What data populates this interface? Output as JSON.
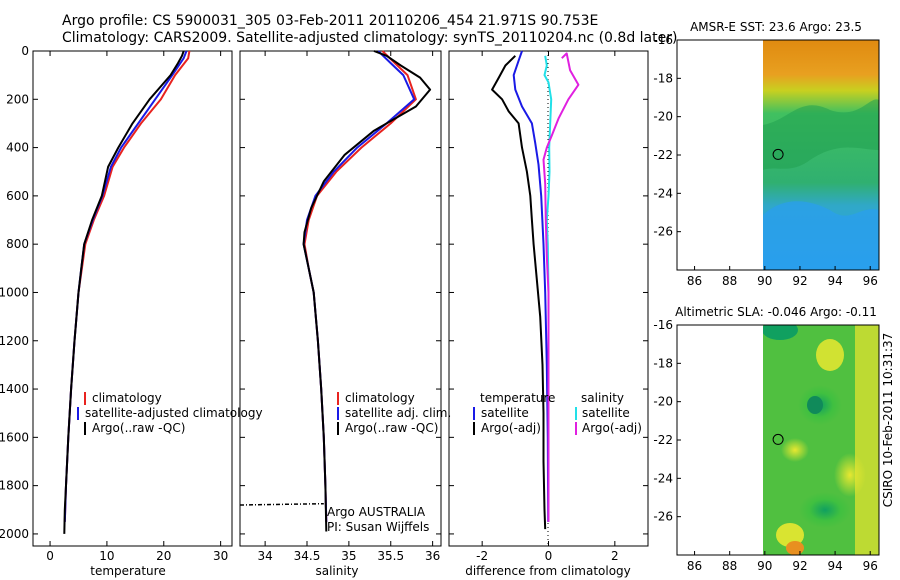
{
  "header": {
    "line1": "Argo profile: CS 5900031_305 03-Feb-2011 20110206_454 21.971S 90.753E",
    "line2": "Climatology: CARS2009. Satellite-adjusted climatology: synTS_20110204.nc (0.8d later)"
  },
  "side_label": "CSIRO 10-Feb-2011 10:31:37",
  "colors": {
    "climatology": "#e8231f",
    "satellite": "#1a1ae6",
    "argo": "#000000",
    "sat_salinity": "#22e0e8",
    "argo_adj_salinity": "#e020e0"
  },
  "chart_data": [
    {
      "id": "temperature",
      "type": "line",
      "xlabel": "temperature",
      "ylabel": "",
      "xlim": [
        -3,
        32
      ],
      "ylim": [
        2050,
        0
      ],
      "xticks": [
        0,
        10,
        20,
        30
      ],
      "yticks": [
        0,
        200,
        400,
        600,
        800,
        1000,
        1200,
        1400,
        1600,
        1800,
        2000
      ],
      "legend": [
        "climatology",
        "satellite-adjusted climatology",
        "Argo(..raw -QC)"
      ],
      "series": [
        {
          "name": "climatology",
          "color": "red",
          "points": [
            [
              24.5,
              0
            ],
            [
              24.3,
              30
            ],
            [
              22,
              100
            ],
            [
              19.5,
              200
            ],
            [
              16,
              300
            ],
            [
              13,
              400
            ],
            [
              11,
              480
            ],
            [
              9.5,
              600
            ],
            [
              7.7,
              700
            ],
            [
              6.2,
              800
            ],
            [
              5.6,
              900
            ],
            [
              5,
              1000
            ],
            [
              4.3,
              1200
            ],
            [
              3.7,
              1400
            ],
            [
              3.2,
              1600
            ],
            [
              2.8,
              1800
            ],
            [
              2.6,
              1950
            ]
          ]
        },
        {
          "name": "satellite",
          "color": "blue",
          "points": [
            [
              24,
              0
            ],
            [
              23.5,
              30
            ],
            [
              21.5,
              100
            ],
            [
              18.5,
              200
            ],
            [
              15.5,
              300
            ],
            [
              12.5,
              400
            ],
            [
              10.7,
              480
            ],
            [
              9.2,
              600
            ],
            [
              7.5,
              700
            ],
            [
              6,
              800
            ],
            [
              5.5,
              900
            ],
            [
              5,
              1000
            ],
            [
              4.3,
              1200
            ],
            [
              3.7,
              1400
            ],
            [
              3.2,
              1600
            ],
            [
              2.8,
              1800
            ],
            [
              2.6,
              1950
            ]
          ]
        },
        {
          "name": "argo",
          "color": "black",
          "points": [
            [
              23.5,
              0
            ],
            [
              23.2,
              20
            ],
            [
              22.5,
              50
            ],
            [
              21.2,
              100
            ],
            [
              17.5,
              200
            ],
            [
              14.5,
              300
            ],
            [
              12,
              400
            ],
            [
              10.2,
              480
            ],
            [
              9.1,
              600
            ],
            [
              7.4,
              700
            ],
            [
              6,
              800
            ],
            [
              5.5,
              900
            ],
            [
              5,
              1000
            ],
            [
              4.3,
              1200
            ],
            [
              3.7,
              1400
            ],
            [
              3.2,
              1600
            ],
            [
              2.8,
              1800
            ],
            [
              2.6,
              1900
            ],
            [
              2.5,
              2000
            ]
          ]
        }
      ]
    },
    {
      "id": "salinity",
      "type": "line",
      "xlabel": "salinity",
      "xlim": [
        33.7,
        36.1
      ],
      "ylim": [
        2050,
        0
      ],
      "xticks": [
        34,
        34.5,
        35,
        35.5,
        36
      ],
      "legend": [
        "climatology",
        "satellite adj. clim.",
        "Argo(..raw -QC)"
      ],
      "annotation": [
        "Argo AUSTRALIA",
        "PI: Susan Wijffels"
      ],
      "series": [
        {
          "name": "climatology",
          "color": "red",
          "points": [
            [
              35.4,
              0
            ],
            [
              35.55,
              50
            ],
            [
              35.7,
              100
            ],
            [
              35.8,
              200
            ],
            [
              35.5,
              300
            ],
            [
              35.15,
              400
            ],
            [
              34.85,
              500
            ],
            [
              34.62,
              600
            ],
            [
              34.52,
              700
            ],
            [
              34.47,
              800
            ],
            [
              34.52,
              900
            ],
            [
              34.58,
              1000
            ],
            [
              34.63,
              1200
            ],
            [
              34.67,
              1400
            ],
            [
              34.7,
              1600
            ],
            [
              34.72,
              1800
            ],
            [
              34.73,
              1950
            ]
          ]
        },
        {
          "name": "satellite",
          "color": "blue",
          "points": [
            [
              35.35,
              0
            ],
            [
              35.5,
              50
            ],
            [
              35.65,
              100
            ],
            [
              35.78,
              200
            ],
            [
              35.45,
              300
            ],
            [
              35.1,
              400
            ],
            [
              34.82,
              500
            ],
            [
              34.6,
              600
            ],
            [
              34.5,
              700
            ],
            [
              34.46,
              800
            ],
            [
              34.52,
              900
            ],
            [
              34.58,
              1000
            ],
            [
              34.63,
              1200
            ],
            [
              34.67,
              1400
            ],
            [
              34.7,
              1600
            ],
            [
              34.72,
              1800
            ],
            [
              34.73,
              1950
            ]
          ]
        },
        {
          "name": "argo",
          "color": "black",
          "points": [
            [
              35.3,
              0
            ],
            [
              35.45,
              20
            ],
            [
              35.62,
              60
            ],
            [
              35.85,
              110
            ],
            [
              35.97,
              160
            ],
            [
              35.8,
              230
            ],
            [
              35.3,
              330
            ],
            [
              34.95,
              430
            ],
            [
              34.7,
              540
            ],
            [
              34.55,
              650
            ],
            [
              34.47,
              750
            ],
            [
              34.46,
              800
            ],
            [
              34.52,
              900
            ],
            [
              34.58,
              1000
            ],
            [
              34.63,
              1200
            ],
            [
              34.67,
              1400
            ],
            [
              34.7,
              1600
            ],
            [
              34.72,
              1800
            ],
            [
              34.73,
              1990
            ]
          ]
        }
      ],
      "outlier_tail": [
        [
          33.7,
          1880
        ],
        [
          34.7,
          1875
        ]
      ]
    },
    {
      "id": "difference",
      "type": "line",
      "xlabel": "difference from climatology",
      "xlim": [
        -3,
        3
      ],
      "ylim": [
        2050,
        0
      ],
      "xticks": [
        -2,
        0,
        2
      ],
      "legend_left_title": "temperature",
      "legend_left": [
        "satellite",
        "Argo(-adj)"
      ],
      "legend_right_title": "salinity",
      "legend_right": [
        "satellite",
        "Argo(-adj)"
      ],
      "series": [
        {
          "name": "temperature satellite",
          "color": "blue",
          "points": [
            [
              -0.8,
              0
            ],
            [
              -0.9,
              40
            ],
            [
              -1.05,
              100
            ],
            [
              -1.0,
              160
            ],
            [
              -0.8,
              230
            ],
            [
              -0.5,
              300
            ],
            [
              -0.4,
              380
            ],
            [
              -0.3,
              470
            ],
            [
              -0.22,
              600
            ],
            [
              -0.15,
              800
            ],
            [
              -0.1,
              1000
            ],
            [
              -0.05,
              1300
            ],
            [
              -0.02,
              1600
            ],
            [
              -0.01,
              1950
            ]
          ]
        },
        {
          "name": "temperature argo",
          "color": "black",
          "points": [
            [
              -1.0,
              20
            ],
            [
              -1.3,
              60
            ],
            [
              -1.5,
              110
            ],
            [
              -1.7,
              160
            ],
            [
              -1.4,
              200
            ],
            [
              -1.2,
              250
            ],
            [
              -0.9,
              300
            ],
            [
              -0.8,
              400
            ],
            [
              -0.65,
              500
            ],
            [
              -0.55,
              600
            ],
            [
              -0.5,
              700
            ],
            [
              -0.45,
              800
            ],
            [
              -0.35,
              950
            ],
            [
              -0.25,
              1100
            ],
            [
              -0.18,
              1300
            ],
            [
              -0.15,
              1500
            ],
            [
              -0.15,
              1700
            ],
            [
              -0.12,
              1900
            ],
            [
              -0.1,
              1980
            ]
          ]
        },
        {
          "name": "salinity satellite",
          "color": "cyan",
          "points": [
            [
              -0.1,
              20
            ],
            [
              -0.05,
              60
            ],
            [
              -0.12,
              100
            ],
            [
              0.0,
              130
            ],
            [
              0.08,
              200
            ],
            [
              0.05,
              300
            ],
            [
              0.02,
              400
            ],
            [
              0.03,
              500
            ],
            [
              0.0,
              600
            ],
            [
              -0.05,
              700
            ],
            [
              -0.02,
              800
            ],
            [
              0.0,
              1000
            ],
            [
              0.0,
              1950
            ]
          ]
        },
        {
          "name": "salinity argo",
          "color": "magenta",
          "points": [
            [
              0.4,
              30
            ],
            [
              0.55,
              10
            ],
            [
              0.65,
              80
            ],
            [
              0.9,
              140
            ],
            [
              0.6,
              200
            ],
            [
              0.3,
              280
            ],
            [
              0.1,
              350
            ],
            [
              -0.05,
              400
            ],
            [
              -0.15,
              450
            ],
            [
              -0.1,
              550
            ],
            [
              -0.08,
              700
            ],
            [
              -0.05,
              850
            ],
            [
              0.0,
              1000
            ],
            [
              0.0,
              1950
            ]
          ]
        }
      ]
    },
    {
      "id": "sst_map",
      "type": "heatmap",
      "title": "AMSR-E SST: 23.6 Argo: 23.5",
      "xlim": [
        85,
        96.5
      ],
      "ylim": [
        -28,
        -16
      ],
      "xticks": [
        86,
        88,
        90,
        92,
        94,
        96
      ],
      "yticks": [
        -16,
        -18,
        -20,
        -22,
        -24,
        -26
      ],
      "marker": [
        90.753,
        -21.971
      ]
    },
    {
      "id": "sla_map",
      "type": "heatmap",
      "title": "Altimetric SLA: -0.046 Argo: -0.11",
      "xlim": [
        85,
        96.5
      ],
      "ylim": [
        -28,
        -16
      ],
      "xticks": [
        86,
        88,
        90,
        92,
        94,
        96
      ],
      "yticks": [
        -16,
        -18,
        -20,
        -22,
        -24,
        -26
      ],
      "marker": [
        90.753,
        -21.971
      ]
    }
  ]
}
